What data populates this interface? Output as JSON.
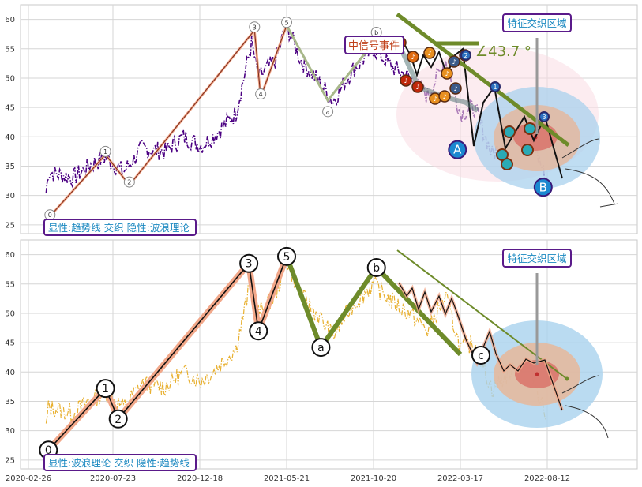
{
  "chart_data": [
    {
      "type": "line",
      "panel": "top",
      "ylim": [
        23.5,
        62.5
      ],
      "yticks": [
        25,
        30,
        35,
        40,
        45,
        50,
        55,
        60
      ],
      "x_ticks": [
        "2020-02-26",
        "2020-07-23",
        "2020-12-18",
        "2021-05-21",
        "2021-10-20",
        "2022-03-17",
        "2022-08-12"
      ],
      "grid": true,
      "price_series": {
        "color": "#4b0082",
        "style": "dash-dot",
        "keypoints": [
          [
            "2020-03-28",
            30.5
          ],
          [
            "2020-04-01",
            34
          ],
          [
            "2020-05-15",
            33
          ],
          [
            "2020-06-10",
            35
          ],
          [
            "2020-07-10",
            36.5
          ],
          [
            "2020-08-10",
            34
          ],
          [
            "2020-09-10",
            38
          ],
          [
            "2020-10-20",
            37.5
          ],
          [
            "2020-11-20",
            40
          ],
          [
            "2020-12-20",
            38.5
          ],
          [
            "2021-01-10",
            40
          ],
          [
            "2021-02-20",
            44
          ],
          [
            "2021-03-20",
            56
          ],
          [
            "2021-04-01",
            50
          ],
          [
            "2021-05-01",
            53
          ],
          [
            "2021-05-21",
            59
          ],
          [
            "2021-06-15",
            53
          ],
          [
            "2021-07-20",
            49
          ],
          [
            "2021-08-10",
            46
          ],
          [
            "2021-09-10",
            51
          ],
          [
            "2021-10-20",
            55
          ],
          [
            "2021-11-20",
            52
          ],
          [
            "2021-12-20",
            50
          ],
          [
            "2022-01-20",
            47
          ],
          [
            "2022-02-20",
            53
          ],
          [
            "2022-03-17",
            44
          ],
          [
            "2022-04-10",
            45
          ],
          [
            "2022-05-10",
            37
          ],
          [
            "2022-06-10",
            40
          ],
          [
            "2022-07-10",
            42
          ],
          [
            "2022-08-12",
            32
          ]
        ]
      },
      "wave_points": [
        {
          "label": "0",
          "date": "2020-04-01",
          "value": 26.7
        },
        {
          "label": "1",
          "date": "2020-07-10",
          "value": 37.5
        },
        {
          "label": "2",
          "date": "2020-08-20",
          "value": 32.3
        },
        {
          "label": "3",
          "date": "2021-03-25",
          "value": 58.7
        },
        {
          "label": "4",
          "date": "2021-04-05",
          "value": 47.3
        },
        {
          "label": "5",
          "date": "2021-05-21",
          "value": 59.5
        },
        {
          "label": "a",
          "date": "2021-08-01",
          "value": 44.3
        },
        {
          "label": "b",
          "date": "2021-10-25",
          "value": 57.8
        }
      ],
      "big_labels": [
        {
          "label": "A",
          "date": "2022-03-12",
          "value": 37.8
        },
        {
          "label": "B",
          "date": "2022-08-05",
          "value": 31.4
        }
      ],
      "texts": {
        "box_label": "显性:趋势线 交织 隐性:波浪理论",
        "event_box": "中信号事件",
        "feature_region": "特征交织区域",
        "angle_label": "∠43.7 °",
        "event_markers": [
          "♪",
          "♪",
          "♪",
          "♪",
          "♪",
          "♪",
          "♪",
          "♪",
          "♪"
        ],
        "circle_labels": [
          "1",
          "2",
          "3",
          "2",
          "3"
        ]
      }
    },
    {
      "type": "line",
      "panel": "bottom",
      "ylim": [
        23.5,
        62.5
      ],
      "yticks": [
        25,
        30,
        35,
        40,
        45,
        50,
        55,
        60
      ],
      "x_ticks": [
        "2020-02-26",
        "2020-07-23",
        "2020-12-18",
        "2021-05-21",
        "2021-10-20",
        "2022-03-17",
        "2022-08-12"
      ],
      "grid": true,
      "price_series": {
        "color": "#e8b030",
        "style": "dash-dot"
      },
      "wave_points": [
        {
          "label": "0",
          "date": "2020-04-01",
          "value": 26.7
        },
        {
          "label": "1",
          "date": "2020-07-10",
          "value": 37.2
        },
        {
          "label": "2",
          "date": "2020-08-01",
          "value": 32
        },
        {
          "label": "3",
          "date": "2021-03-15",
          "value": 58.5
        },
        {
          "label": "4",
          "date": "2021-04-01",
          "value": 47
        },
        {
          "label": "5",
          "date": "2021-05-21",
          "value": 59.7
        },
        {
          "label": "a",
          "date": "2021-07-20",
          "value": 44.2
        },
        {
          "label": "b",
          "date": "2021-10-25",
          "value": 57.8
        },
        {
          "label": "c",
          "date": "2022-03-17",
          "value": 43
        }
      ],
      "texts": {
        "box_label": "显性:波浪理论 交织 隐性:趋势线",
        "feature_region": "特征交织区域"
      }
    }
  ]
}
